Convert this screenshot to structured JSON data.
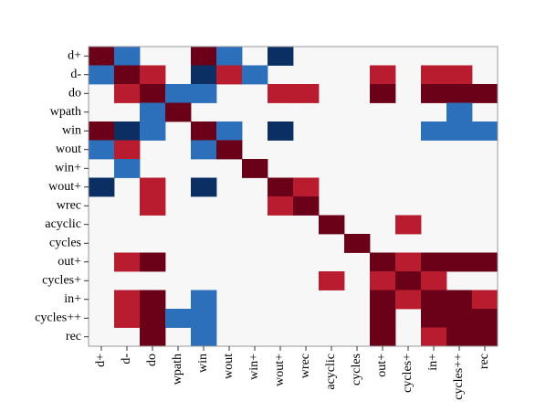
{
  "chart_data": {
    "type": "heatmap",
    "title": "",
    "xlabel": "",
    "ylabel": "",
    "labels": [
      "d+",
      "d-",
      "do",
      "wpath",
      "win",
      "wout",
      "win+",
      "wout+",
      "wrec",
      "acyclic",
      "cycles",
      "out+",
      "cycles+",
      "in+",
      "cycles++",
      "rec"
    ],
    "value_scale": {
      "range": [
        -2,
        2
      ],
      "colors": {
        "-2": "#0b2f63",
        "-1": "#2c6fbb",
        "0": "#f7f7f7",
        "1": "#b81c2e",
        "2": "#6b0019"
      }
    },
    "matrix": [
      [
        2,
        -1,
        0,
        0,
        2,
        -1,
        0,
        -2,
        0,
        0,
        0,
        0,
        0,
        0,
        0,
        0
      ],
      [
        -1,
        2,
        1,
        0,
        -2,
        1,
        -1,
        0,
        0,
        0,
        0,
        1,
        0,
        1,
        1,
        0
      ],
      [
        0,
        1,
        2,
        -1,
        -1,
        0,
        0,
        1,
        1,
        0,
        0,
        2,
        0,
        2,
        2,
        2
      ],
      [
        0,
        0,
        -1,
        2,
        0,
        0,
        0,
        0,
        0,
        0,
        0,
        0,
        0,
        0,
        -1,
        0
      ],
      [
        2,
        -2,
        -1,
        0,
        2,
        -1,
        0,
        -2,
        0,
        0,
        0,
        0,
        0,
        -1,
        -1,
        -1
      ],
      [
        -1,
        1,
        0,
        0,
        -1,
        2,
        0,
        0,
        0,
        0,
        0,
        0,
        0,
        0,
        0,
        0
      ],
      [
        0,
        -1,
        0,
        0,
        0,
        0,
        2,
        0,
        0,
        0,
        0,
        0,
        0,
        0,
        0,
        0
      ],
      [
        -2,
        0,
        1,
        0,
        -2,
        0,
        0,
        2,
        1,
        0,
        0,
        0,
        0,
        0,
        0,
        0
      ],
      [
        0,
        0,
        1,
        0,
        0,
        0,
        0,
        1,
        2,
        0,
        0,
        0,
        0,
        0,
        0,
        0
      ],
      [
        0,
        0,
        0,
        0,
        0,
        0,
        0,
        0,
        0,
        2,
        0,
        0,
        1,
        0,
        0,
        0
      ],
      [
        0,
        0,
        0,
        0,
        0,
        0,
        0,
        0,
        0,
        0,
        2,
        0,
        0,
        0,
        0,
        0
      ],
      [
        0,
        1,
        2,
        0,
        0,
        0,
        0,
        0,
        0,
        0,
        0,
        2,
        1,
        2,
        2,
        2
      ],
      [
        0,
        0,
        0,
        0,
        0,
        0,
        0,
        0,
        0,
        1,
        0,
        1,
        2,
        1,
        0,
        0
      ],
      [
        0,
        1,
        2,
        0,
        -1,
        0,
        0,
        0,
        0,
        0,
        0,
        2,
        1,
        2,
        2,
        1
      ],
      [
        0,
        1,
        2,
        -1,
        -1,
        0,
        0,
        0,
        0,
        0,
        0,
        2,
        0,
        2,
        2,
        2
      ],
      [
        0,
        0,
        2,
        0,
        -1,
        0,
        0,
        0,
        0,
        0,
        0,
        2,
        0,
        1,
        2,
        2
      ]
    ],
    "grid": false,
    "legend": "none"
  }
}
